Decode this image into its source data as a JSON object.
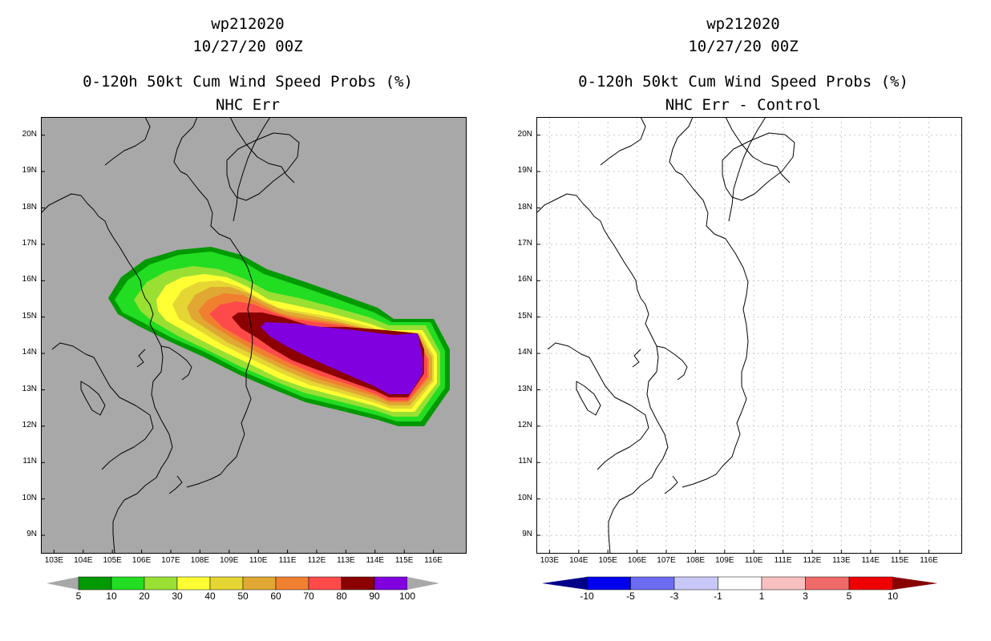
{
  "left_panel": {
    "storm_id": "wp212020",
    "datetime": "10/27/20 00Z",
    "product": "0-120h 50kt Cum Wind Speed Probs (%)",
    "subtitle": "NHC Err",
    "background_color": "#a8a8a8",
    "colorbar": {
      "labels": [
        "5",
        "10",
        "20",
        "30",
        "40",
        "50",
        "60",
        "70",
        "80",
        "90",
        "100"
      ],
      "colors": [
        "#009900",
        "#22dd22",
        "#99e033",
        "#ffff33",
        "#e6d633",
        "#e0a833",
        "#f08030",
        "#ff4a4a",
        "#8b0000",
        "#8000e0"
      ]
    }
  },
  "right_panel": {
    "storm_id": "wp212020",
    "datetime": "10/27/20 00Z",
    "product": "0-120h 50kt Cum Wind Speed Probs (%)",
    "subtitle": "NHC Err - Control",
    "background_color": "#ffffff",
    "colorbar": {
      "labels": [
        "-10",
        "-5",
        "-3",
        "-1",
        "1",
        "3",
        "5",
        "10"
      ],
      "colors": [
        "#000088",
        "#0000ee",
        "#6c6cf2",
        "#c8c8f8",
        "#ffffff",
        "#f8c0c0",
        "#f06a6a",
        "#ee0000",
        "#880000"
      ]
    }
  },
  "axes": {
    "lat_labels": [
      "20N",
      "19N",
      "18N",
      "17N",
      "16N",
      "15N",
      "14N",
      "13N",
      "12N",
      "11N",
      "10N",
      "9N"
    ],
    "lon_labels": [
      "103E",
      "104E",
      "105E",
      "106E",
      "107E",
      "108E",
      "109E",
      "110E",
      "111E",
      "112E",
      "113E",
      "114E",
      "115E",
      "116E"
    ]
  }
}
